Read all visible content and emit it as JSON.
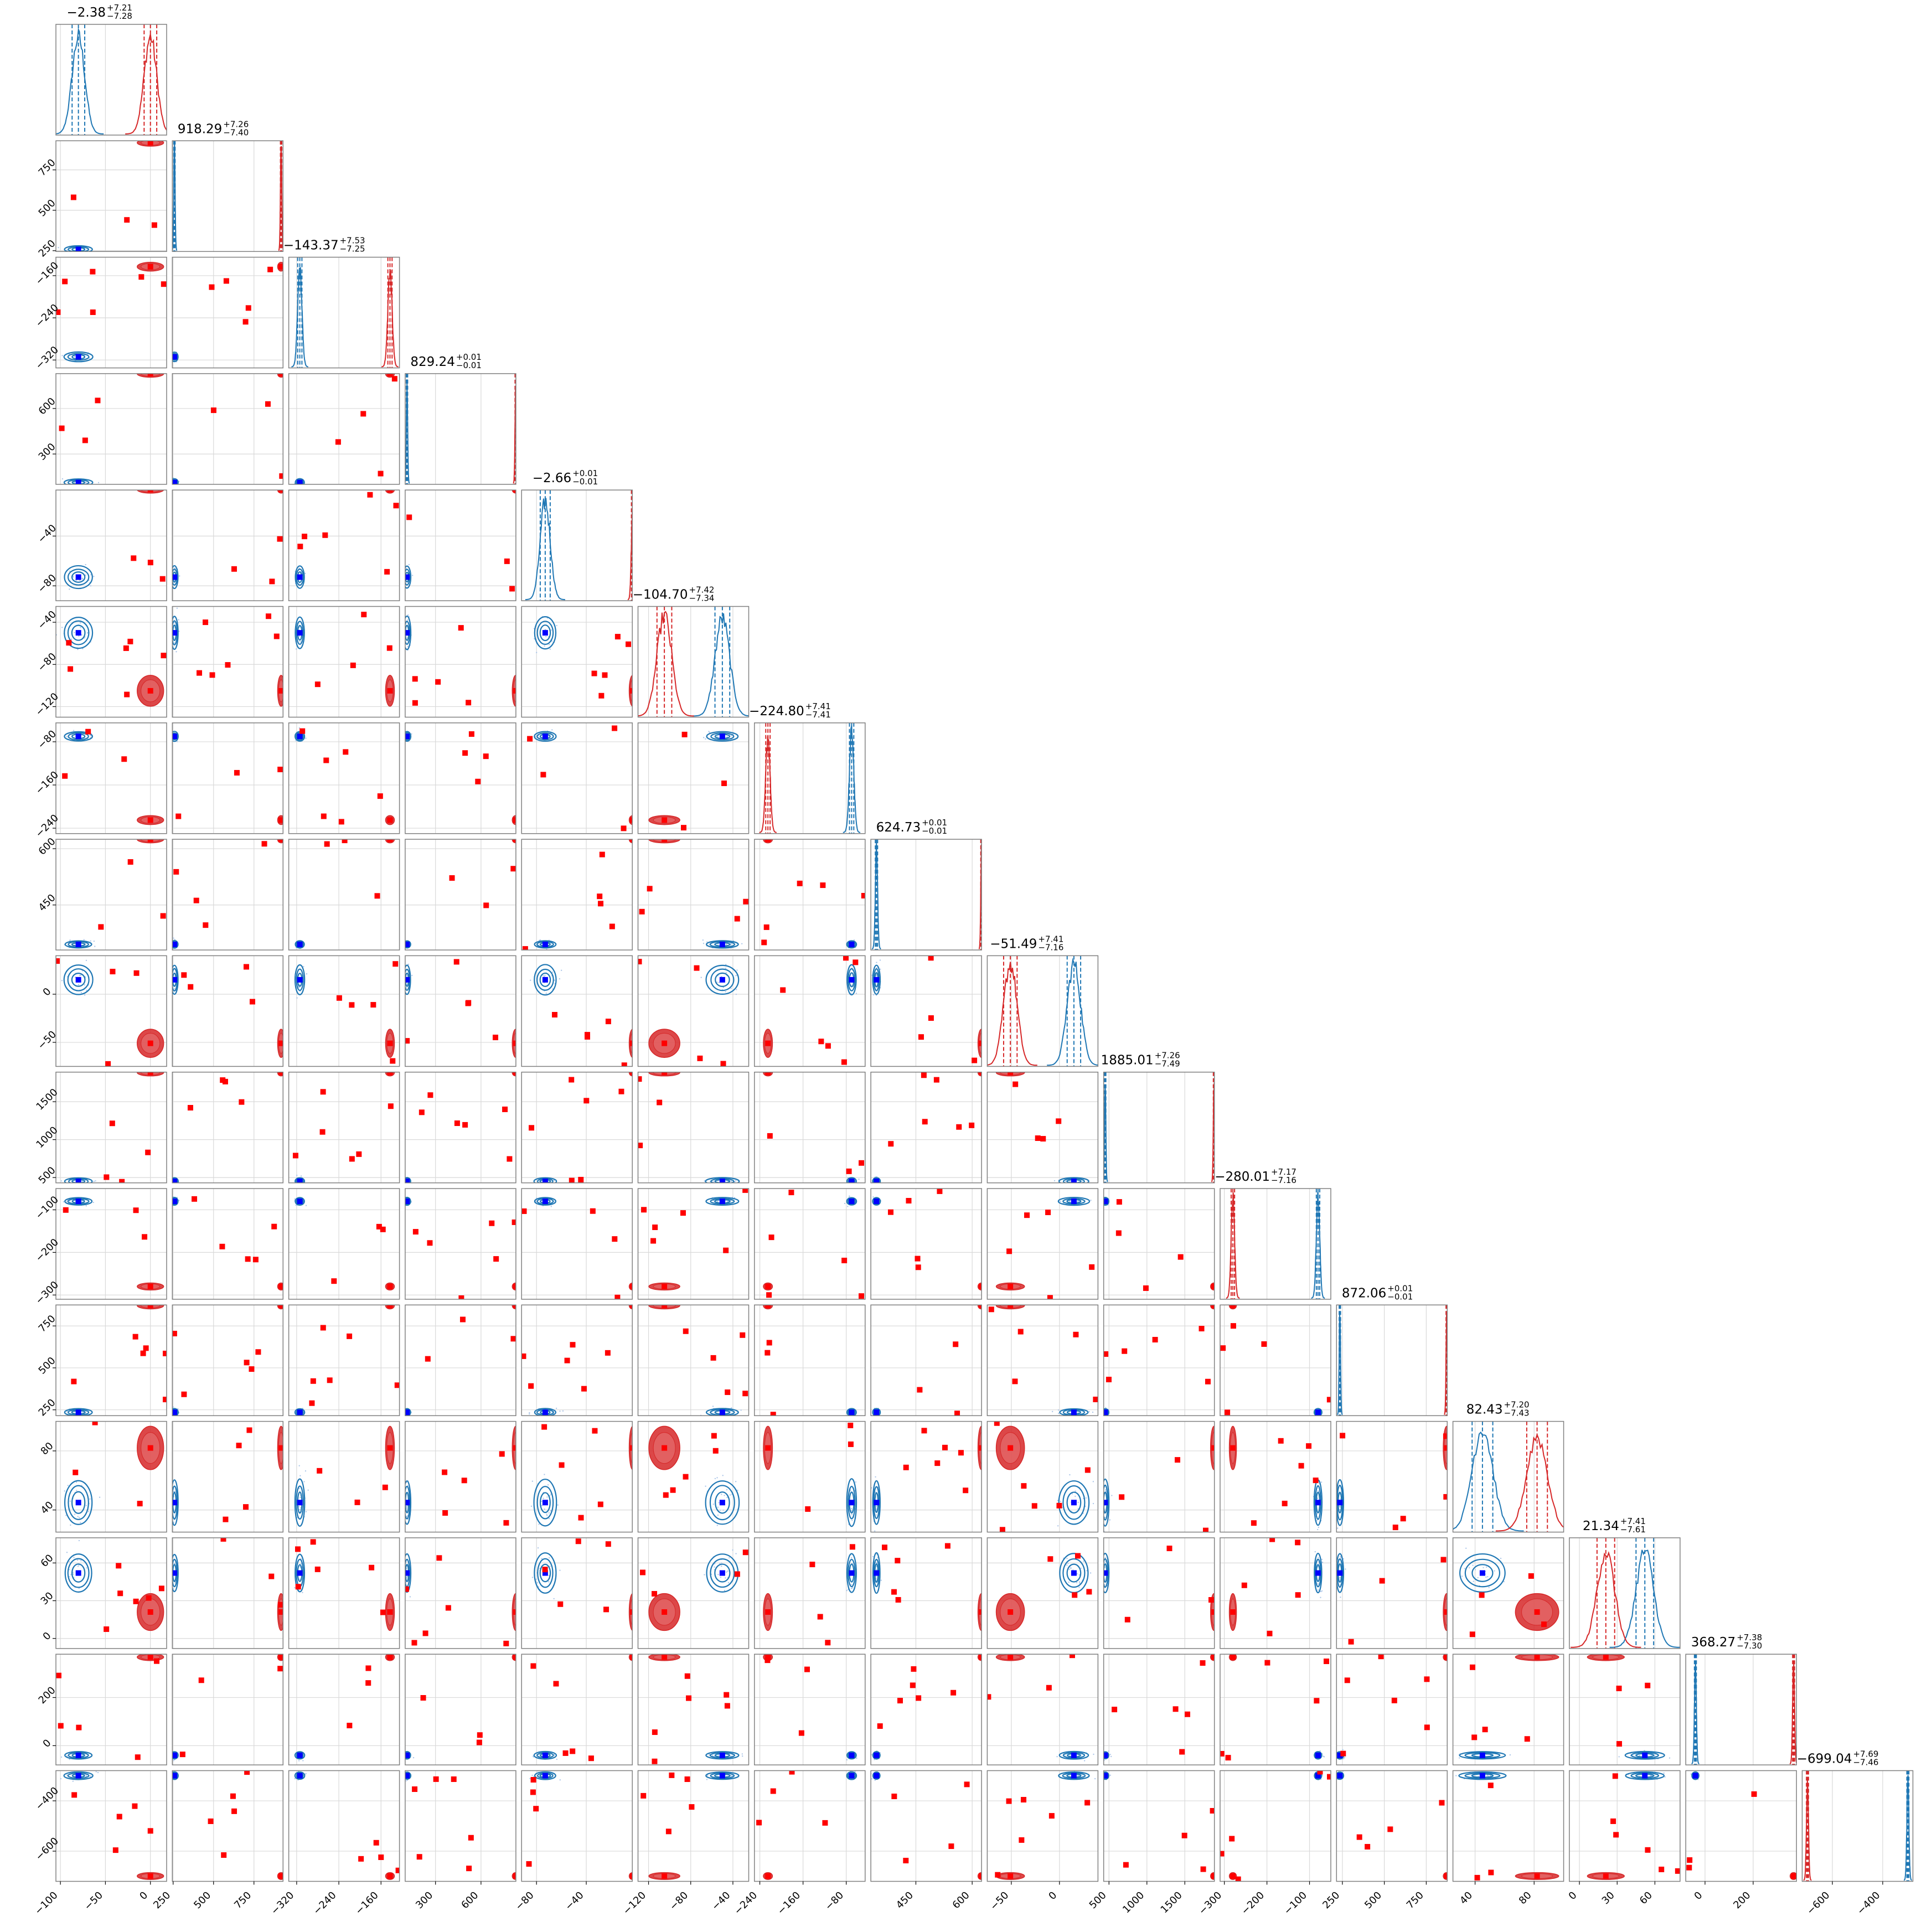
{
  "chart_data": {
    "type": "corner",
    "grid": true,
    "colors": {
      "blue": "#1f77b4",
      "blue_marker": "#0000ff",
      "red": "#d62728",
      "red_marker": "#ff0000",
      "grid": "#d9d9d9",
      "frame": "#808080"
    },
    "parameters": [
      {
        "title": "−2.38",
        "sup": "+7.21",
        "sub": "−7.28",
        "range": [
          -105,
          18
        ],
        "ticks": [
          -100,
          -50,
          0
        ],
        "blue": [
          -80,
          7
        ],
        "red": [
          0,
          7
        ]
      },
      {
        "title": "918.29",
        "sup": "+7.26",
        "sub": "−7.40",
        "range": [
          245,
          930
        ],
        "ticks": [
          250,
          500,
          750
        ],
        "blue": [
          258,
          4
        ],
        "red": [
          918,
          4
        ]
      },
      {
        "title": "−143.37",
        "sup": "+7.53",
        "sub": "−7.25",
        "range": [
          -335,
          -125
        ],
        "ticks": [
          -320,
          -240,
          -160
        ],
        "blue": [
          -314,
          4
        ],
        "red": [
          -143,
          4
        ]
      },
      {
        "title": "829.24",
        "sup": "+0.01",
        "sub": "−0.01",
        "range": [
          100,
          830
        ],
        "ticks": [
          300,
          600
        ],
        "blue": [
          112,
          1
        ],
        "red": [
          829,
          1
        ]
      },
      {
        "title": "−2.66",
        "sup": "+0.01",
        "sub": "−0.01",
        "range": [
          -92,
          -3
        ],
        "ticks": [
          -80,
          -40
        ],
        "blue": [
          -73,
          4
        ],
        "red": [
          -2.7,
          1
        ]
      },
      {
        "title": "−104.70",
        "sup": "+7.42",
        "sub": "−7.34",
        "range": [
          -130,
          -25
        ],
        "ticks": [
          -120,
          -80,
          -40
        ],
        "blue": [
          -50,
          7
        ],
        "red": [
          -105,
          7
        ]
      },
      {
        "title": "−224.80",
        "sup": "+7.41",
        "sub": "−7.41",
        "range": [
          -250,
          -45
        ],
        "ticks": [
          -240,
          -160,
          -80
        ],
        "blue": [
          -70,
          4
        ],
        "red": [
          -225,
          4
        ]
      },
      {
        "title": "624.73",
        "sup": "+0.01",
        "sub": "−0.01",
        "range": [
          330,
          625
        ],
        "ticks": [
          450,
          600
        ],
        "blue": [
          345,
          3
        ],
        "red": [
          624.7,
          1
        ]
      },
      {
        "title": "−51.49",
        "sup": "+7.41",
        "sub": "−7.16",
        "range": [
          -75,
          40
        ],
        "ticks": [
          -50,
          0
        ],
        "blue": [
          15,
          7
        ],
        "red": [
          -51,
          7
        ]
      },
      {
        "title": "1885.01",
        "sup": "+7.26",
        "sub": "−7.49",
        "range": [
          430,
          1890
        ],
        "ticks": [
          500,
          1000,
          1500
        ],
        "blue": [
          450,
          4
        ],
        "red": [
          1885,
          4
        ]
      },
      {
        "title": "−280.01",
        "sup": "+7.17",
        "sub": "−7.16",
        "range": [
          -310,
          -50
        ],
        "ticks": [
          -300,
          -200,
          -100
        ],
        "blue": [
          -80,
          4
        ],
        "red": [
          -280,
          4
        ]
      },
      {
        "title": "872.06",
        "sup": "+0.01",
        "sub": "−0.01",
        "range": [
          215,
          875
        ],
        "ticks": [
          250,
          500,
          750
        ],
        "blue": [
          235,
          1
        ],
        "red": [
          872,
          1
        ]
      },
      {
        "title": "82.43",
        "sup": "+7.20",
        "sub": "−7.43",
        "range": [
          25,
          100
        ],
        "ticks": [
          40,
          80
        ],
        "blue": [
          45,
          7
        ],
        "red": [
          82,
          7
        ]
      },
      {
        "title": "21.34",
        "sup": "+7.41",
        "sub": "−7.61",
        "range": [
          -8,
          80
        ],
        "ticks": [
          0,
          30,
          60
        ],
        "blue": [
          52,
          7
        ],
        "red": [
          21,
          7
        ]
      },
      {
        "title": "368.27",
        "sup": "+7.38",
        "sub": "−7.30",
        "range": [
          -80,
          380
        ],
        "ticks": [
          0,
          200
        ],
        "blue": [
          -40,
          4
        ],
        "red": [
          368,
          4
        ]
      },
      {
        "title": "−699.04",
        "sup": "+7.69",
        "sub": "−7.46",
        "range": [
          -720,
          -280
        ],
        "ticks": [
          -600,
          -400
        ],
        "blue": [
          -300,
          4
        ],
        "red": [
          -699,
          4
        ]
      }
    ]
  }
}
